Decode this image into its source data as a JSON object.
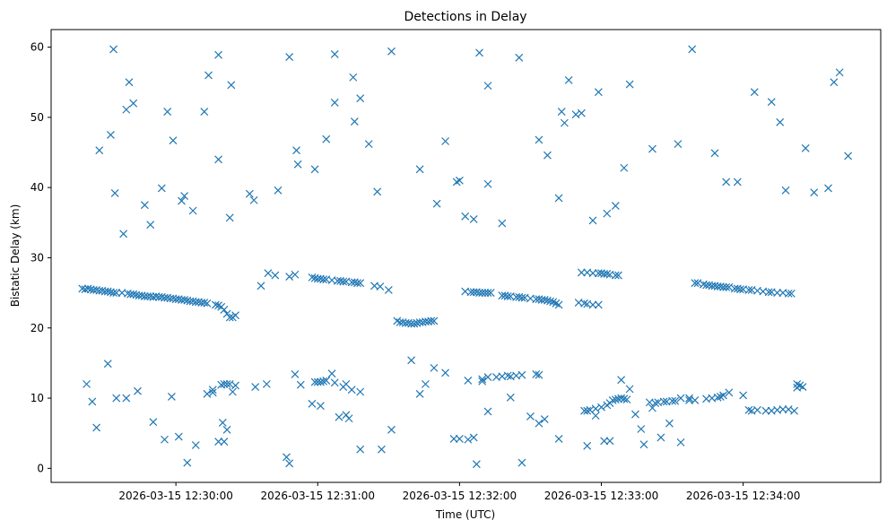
{
  "chart_data": {
    "type": "scatter",
    "title": "Detections in Delay",
    "xlabel": "Time (UTC)",
    "ylabel": "Bistatic Delay (km)",
    "marker": "x",
    "color": "#1f77b4",
    "xlim": [
      -0.88,
      4.97
    ],
    "ylim": [
      -2.0,
      62.5
    ],
    "grid": false,
    "xticks": [
      {
        "value": 0,
        "label": "2026-03-15 12:30:00"
      },
      {
        "value": 1,
        "label": "2026-03-15 12:31:00"
      },
      {
        "value": 2,
        "label": "2026-03-15 12:32:00"
      },
      {
        "value": 3,
        "label": "2026-03-15 12:33:00"
      },
      {
        "value": 4,
        "label": "2026-03-15 12:34:00"
      }
    ],
    "yticks": [
      0,
      10,
      20,
      30,
      40,
      50,
      60
    ],
    "x_units": "minutes after 2026-03-15 12:30:00 UTC",
    "points": [
      [
        -0.66,
        25.6
      ],
      [
        -0.64,
        25.5
      ],
      [
        -0.62,
        25.6
      ],
      [
        -0.6,
        25.5
      ],
      [
        -0.58,
        25.4
      ],
      [
        -0.56,
        25.4
      ],
      [
        -0.54,
        25.3
      ],
      [
        -0.52,
        25.3
      ],
      [
        -0.5,
        25.2
      ],
      [
        -0.48,
        25.2
      ],
      [
        -0.46,
        25.1
      ],
      [
        -0.44,
        25.0
      ],
      [
        -0.42,
        25.0
      ],
      [
        -0.38,
        25.0
      ],
      [
        -0.34,
        24.9
      ],
      [
        -0.32,
        24.8
      ],
      [
        -0.3,
        24.8
      ],
      [
        -0.28,
        24.7
      ],
      [
        -0.26,
        24.6
      ],
      [
        -0.24,
        24.6
      ],
      [
        -0.22,
        24.5
      ],
      [
        -0.2,
        24.5
      ],
      [
        -0.18,
        24.5
      ],
      [
        -0.16,
        24.4
      ],
      [
        -0.14,
        24.5
      ],
      [
        -0.12,
        24.4
      ],
      [
        -0.1,
        24.4
      ],
      [
        -0.08,
        24.3
      ],
      [
        -0.06,
        24.3
      ],
      [
        -0.04,
        24.2
      ],
      [
        -0.02,
        24.2
      ],
      [
        0.0,
        24.1
      ],
      [
        0.02,
        24.1
      ],
      [
        0.04,
        24.0
      ],
      [
        0.06,
        24.0
      ],
      [
        0.08,
        23.9
      ],
      [
        0.1,
        23.8
      ],
      [
        0.12,
        23.8
      ],
      [
        0.14,
        23.7
      ],
      [
        0.16,
        23.7
      ],
      [
        0.18,
        23.6
      ],
      [
        0.2,
        23.6
      ],
      [
        0.22,
        23.5
      ],
      [
        0.28,
        23.3
      ],
      [
        0.3,
        23.2
      ],
      [
        0.32,
        23.0
      ],
      [
        0.34,
        22.6
      ],
      [
        0.36,
        22.0
      ],
      [
        0.38,
        21.5
      ],
      [
        0.4,
        21.5
      ],
      [
        0.42,
        21.8
      ],
      [
        0.6,
        26.0
      ],
      [
        0.65,
        27.8
      ],
      [
        0.7,
        27.5
      ],
      [
        0.8,
        27.3
      ],
      [
        0.84,
        27.6
      ],
      [
        0.96,
        27.2
      ],
      [
        0.98,
        27.1
      ],
      [
        1.0,
        27.0
      ],
      [
        1.02,
        27.0
      ],
      [
        1.04,
        26.9
      ],
      [
        1.06,
        26.9
      ],
      [
        1.1,
        26.8
      ],
      [
        1.14,
        26.7
      ],
      [
        1.16,
        26.7
      ],
      [
        1.18,
        26.6
      ],
      [
        1.2,
        26.6
      ],
      [
        1.24,
        26.5
      ],
      [
        1.26,
        26.5
      ],
      [
        1.28,
        26.4
      ],
      [
        1.3,
        26.4
      ],
      [
        1.4,
        26.0
      ],
      [
        1.44,
        25.9
      ],
      [
        1.5,
        25.4
      ],
      [
        1.56,
        21.0
      ],
      [
        1.58,
        20.8
      ],
      [
        1.6,
        20.8
      ],
      [
        1.62,
        20.7
      ],
      [
        1.64,
        20.7
      ],
      [
        1.66,
        20.6
      ],
      [
        1.68,
        20.6
      ],
      [
        1.7,
        20.7
      ],
      [
        1.72,
        20.8
      ],
      [
        1.74,
        20.8
      ],
      [
        1.76,
        20.9
      ],
      [
        1.78,
        20.9
      ],
      [
        1.8,
        21.0
      ],
      [
        1.82,
        21.0
      ],
      [
        2.04,
        25.2
      ],
      [
        2.08,
        25.1
      ],
      [
        2.1,
        25.1
      ],
      [
        2.12,
        25.1
      ],
      [
        2.14,
        25.0
      ],
      [
        2.16,
        25.0
      ],
      [
        2.18,
        25.0
      ],
      [
        2.2,
        25.0
      ],
      [
        2.22,
        25.0
      ],
      [
        2.3,
        24.6
      ],
      [
        2.32,
        24.6
      ],
      [
        2.34,
        24.5
      ],
      [
        2.36,
        24.5
      ],
      [
        2.4,
        24.4
      ],
      [
        2.42,
        24.4
      ],
      [
        2.44,
        24.3
      ],
      [
        2.46,
        24.3
      ],
      [
        2.5,
        24.2
      ],
      [
        2.54,
        24.1
      ],
      [
        2.56,
        24.1
      ],
      [
        2.58,
        24.0
      ],
      [
        2.6,
        24.0
      ],
      [
        2.62,
        23.9
      ],
      [
        2.64,
        23.8
      ],
      [
        2.66,
        23.7
      ],
      [
        2.68,
        23.5
      ],
      [
        2.7,
        23.3
      ],
      [
        2.84,
        23.6
      ],
      [
        2.88,
        23.5
      ],
      [
        2.9,
        23.4
      ],
      [
        2.94,
        23.3
      ],
      [
        2.98,
        23.3
      ],
      [
        2.86,
        27.9
      ],
      [
        2.9,
        27.9
      ],
      [
        2.94,
        27.8
      ],
      [
        2.98,
        27.8
      ],
      [
        3.0,
        27.8
      ],
      [
        3.02,
        27.7
      ],
      [
        3.04,
        27.7
      ],
      [
        3.06,
        27.6
      ],
      [
        3.1,
        27.5
      ],
      [
        3.12,
        27.5
      ],
      [
        3.66,
        26.4
      ],
      [
        3.68,
        26.4
      ],
      [
        3.72,
        26.2
      ],
      [
        3.74,
        26.1
      ],
      [
        3.76,
        26.1
      ],
      [
        3.78,
        26.0
      ],
      [
        3.8,
        26.0
      ],
      [
        3.82,
        25.9
      ],
      [
        3.84,
        25.9
      ],
      [
        3.86,
        25.8
      ],
      [
        3.88,
        25.8
      ],
      [
        3.9,
        25.8
      ],
      [
        3.94,
        25.6
      ],
      [
        3.96,
        25.6
      ],
      [
        3.98,
        25.5
      ],
      [
        4.0,
        25.5
      ],
      [
        4.04,
        25.4
      ],
      [
        4.06,
        25.4
      ],
      [
        4.1,
        25.3
      ],
      [
        4.14,
        25.2
      ],
      [
        4.18,
        25.1
      ],
      [
        4.2,
        25.1
      ],
      [
        4.24,
        25.0
      ],
      [
        4.28,
        25.0
      ],
      [
        4.32,
        24.9
      ],
      [
        4.34,
        24.9
      ],
      [
        0.26,
        11.2
      ],
      [
        0.32,
        11.9
      ],
      [
        0.34,
        12.0
      ],
      [
        0.36,
        12.0
      ],
      [
        0.38,
        12.0
      ],
      [
        0.42,
        11.8
      ],
      [
        0.56,
        11.6
      ],
      [
        0.64,
        12.0
      ],
      [
        0.98,
        12.3
      ],
      [
        1.0,
        12.3
      ],
      [
        1.02,
        12.3
      ],
      [
        1.04,
        12.4
      ],
      [
        1.06,
        12.5
      ],
      [
        1.12,
        12.2
      ],
      [
        1.18,
        11.6
      ],
      [
        1.2,
        12.0
      ],
      [
        1.24,
        11.2
      ],
      [
        1.3,
        10.9
      ],
      [
        2.06,
        12.5
      ],
      [
        2.16,
        12.7
      ],
      [
        2.2,
        13.0
      ],
      [
        2.26,
        13.0
      ],
      [
        2.3,
        13.1
      ],
      [
        2.34,
        13.2
      ],
      [
        2.36,
        13.1
      ],
      [
        2.4,
        13.2
      ],
      [
        2.44,
        13.3
      ],
      [
        2.54,
        13.4
      ],
      [
        2.56,
        13.3
      ],
      [
        2.88,
        8.2
      ],
      [
        2.9,
        8.2
      ],
      [
        2.92,
        8.3
      ],
      [
        2.96,
        8.5
      ],
      [
        3.0,
        8.7
      ],
      [
        3.04,
        9.0
      ],
      [
        3.06,
        9.3
      ],
      [
        3.08,
        9.7
      ],
      [
        3.1,
        9.8
      ],
      [
        3.12,
        9.9
      ],
      [
        3.14,
        10.0
      ],
      [
        3.16,
        9.9
      ],
      [
        3.18,
        9.8
      ],
      [
        3.34,
        9.4
      ],
      [
        3.38,
        9.3
      ],
      [
        3.4,
        9.4
      ],
      [
        3.44,
        9.5
      ],
      [
        3.46,
        9.5
      ],
      [
        3.5,
        9.6
      ],
      [
        3.52,
        9.6
      ],
      [
        3.56,
        10.0
      ],
      [
        3.62,
        9.7
      ],
      [
        3.66,
        9.7
      ],
      [
        3.74,
        9.9
      ],
      [
        3.78,
        10.0
      ],
      [
        3.82,
        10.1
      ],
      [
        3.84,
        10.2
      ],
      [
        3.86,
        10.4
      ],
      [
        3.9,
        10.8
      ],
      [
        4.0,
        10.4
      ],
      [
        4.04,
        8.3
      ],
      [
        4.06,
        8.2
      ],
      [
        4.1,
        8.3
      ],
      [
        4.16,
        8.2
      ],
      [
        4.2,
        8.2
      ],
      [
        4.24,
        8.3
      ],
      [
        4.28,
        8.4
      ],
      [
        4.32,
        8.4
      ],
      [
        4.36,
        8.2
      ],
      [
        4.38,
        12.0
      ],
      [
        4.4,
        11.8
      ],
      [
        4.42,
        11.6
      ],
      [
        4.38,
        11.5
      ],
      [
        -0.63,
        12.0
      ],
      [
        -0.59,
        9.5
      ],
      [
        -0.56,
        5.8
      ],
      [
        -0.48,
        14.9
      ],
      [
        -0.42,
        10.0
      ],
      [
        -0.35,
        10.0
      ],
      [
        -0.27,
        11.0
      ],
      [
        -0.16,
        6.6
      ],
      [
        -0.08,
        4.1
      ],
      [
        -0.03,
        10.2
      ],
      [
        0.02,
        4.5
      ],
      [
        0.08,
        0.8
      ],
      [
        0.14,
        3.3
      ],
      [
        0.22,
        10.6
      ],
      [
        0.26,
        10.8
      ],
      [
        0.3,
        3.8
      ],
      [
        0.34,
        3.8
      ],
      [
        0.33,
        6.5
      ],
      [
        0.36,
        5.5
      ],
      [
        0.4,
        10.9
      ],
      [
        0.78,
        1.6
      ],
      [
        0.8,
        0.7
      ],
      [
        0.84,
        13.4
      ],
      [
        0.88,
        11.9
      ],
      [
        0.96,
        9.2
      ],
      [
        1.02,
        8.9
      ],
      [
        1.1,
        13.5
      ],
      [
        1.15,
        7.3
      ],
      [
        1.2,
        7.6
      ],
      [
        1.22,
        7.1
      ],
      [
        1.3,
        2.7
      ],
      [
        1.45,
        2.7
      ],
      [
        1.52,
        5.5
      ],
      [
        1.66,
        15.4
      ],
      [
        1.72,
        10.6
      ],
      [
        1.76,
        12.0
      ],
      [
        1.82,
        14.3
      ],
      [
        1.9,
        13.6
      ],
      [
        1.96,
        4.2
      ],
      [
        2.0,
        4.2
      ],
      [
        2.06,
        4.1
      ],
      [
        2.1,
        4.4
      ],
      [
        2.12,
        0.6
      ],
      [
        2.16,
        12.4
      ],
      [
        2.2,
        8.1
      ],
      [
        2.36,
        10.1
      ],
      [
        2.44,
        0.8
      ],
      [
        2.5,
        7.4
      ],
      [
        2.56,
        6.4
      ],
      [
        2.6,
        7.0
      ],
      [
        2.7,
        4.2
      ],
      [
        2.9,
        3.2
      ],
      [
        2.96,
        7.5
      ],
      [
        3.02,
        3.9
      ],
      [
        3.06,
        3.9
      ],
      [
        3.14,
        12.6
      ],
      [
        3.2,
        11.3
      ],
      [
        3.24,
        7.7
      ],
      [
        3.28,
        5.6
      ],
      [
        3.3,
        3.4
      ],
      [
        3.36,
        8.6
      ],
      [
        3.42,
        4.4
      ],
      [
        3.48,
        6.4
      ],
      [
        3.56,
        3.7
      ],
      [
        3.62,
        10.0
      ],
      [
        -0.54,
        45.3
      ],
      [
        -0.46,
        47.5
      ],
      [
        -0.43,
        39.2
      ],
      [
        -0.37,
        33.4
      ],
      [
        -0.35,
        51.1
      ],
      [
        -0.33,
        55.0
      ],
      [
        -0.3,
        52.0
      ],
      [
        -0.44,
        59.7
      ],
      [
        -0.22,
        37.5
      ],
      [
        -0.18,
        34.7
      ],
      [
        -0.1,
        39.9
      ],
      [
        -0.06,
        50.8
      ],
      [
        -0.02,
        46.7
      ],
      [
        0.04,
        38.1
      ],
      [
        0.06,
        38.8
      ],
      [
        0.12,
        36.7
      ],
      [
        0.2,
        50.8
      ],
      [
        0.23,
        56.0
      ],
      [
        0.3,
        58.9
      ],
      [
        0.3,
        44.0
      ],
      [
        0.39,
        54.6
      ],
      [
        0.38,
        35.7
      ],
      [
        0.52,
        39.1
      ],
      [
        0.55,
        38.2
      ],
      [
        0.72,
        39.6
      ],
      [
        0.8,
        58.6
      ],
      [
        0.85,
        45.3
      ],
      [
        0.86,
        43.3
      ],
      [
        0.98,
        42.6
      ],
      [
        1.06,
        46.9
      ],
      [
        1.12,
        52.1
      ],
      [
        1.12,
        59.0
      ],
      [
        1.25,
        55.7
      ],
      [
        1.26,
        49.4
      ],
      [
        1.3,
        52.7
      ],
      [
        1.36,
        46.2
      ],
      [
        1.42,
        39.4
      ],
      [
        1.52,
        59.4
      ],
      [
        1.72,
        42.6
      ],
      [
        1.84,
        37.7
      ],
      [
        1.9,
        46.6
      ],
      [
        1.98,
        40.8
      ],
      [
        2.0,
        41.0
      ],
      [
        2.04,
        35.9
      ],
      [
        2.1,
        35.5
      ],
      [
        2.14,
        59.2
      ],
      [
        2.2,
        54.5
      ],
      [
        2.2,
        40.5
      ],
      [
        2.3,
        34.9
      ],
      [
        2.42,
        58.5
      ],
      [
        2.56,
        46.8
      ],
      [
        2.62,
        44.6
      ],
      [
        2.7,
        38.5
      ],
      [
        2.72,
        50.8
      ],
      [
        2.74,
        49.2
      ],
      [
        2.77,
        55.3
      ],
      [
        2.82,
        50.4
      ],
      [
        2.86,
        50.6
      ],
      [
        2.94,
        35.3
      ],
      [
        2.98,
        53.6
      ],
      [
        3.04,
        36.3
      ],
      [
        3.1,
        37.4
      ],
      [
        3.16,
        42.8
      ],
      [
        3.2,
        54.7
      ],
      [
        3.36,
        45.5
      ],
      [
        3.54,
        46.2
      ],
      [
        3.64,
        59.7
      ],
      [
        3.8,
        44.9
      ],
      [
        3.88,
        40.8
      ],
      [
        3.96,
        40.8
      ],
      [
        4.08,
        53.6
      ],
      [
        4.2,
        52.2
      ],
      [
        4.26,
        49.3
      ],
      [
        4.3,
        39.6
      ],
      [
        4.44,
        45.6
      ],
      [
        4.5,
        39.3
      ],
      [
        4.6,
        39.9
      ],
      [
        4.64,
        55.0
      ],
      [
        4.68,
        56.4
      ],
      [
        4.74,
        44.5
      ]
    ]
  }
}
